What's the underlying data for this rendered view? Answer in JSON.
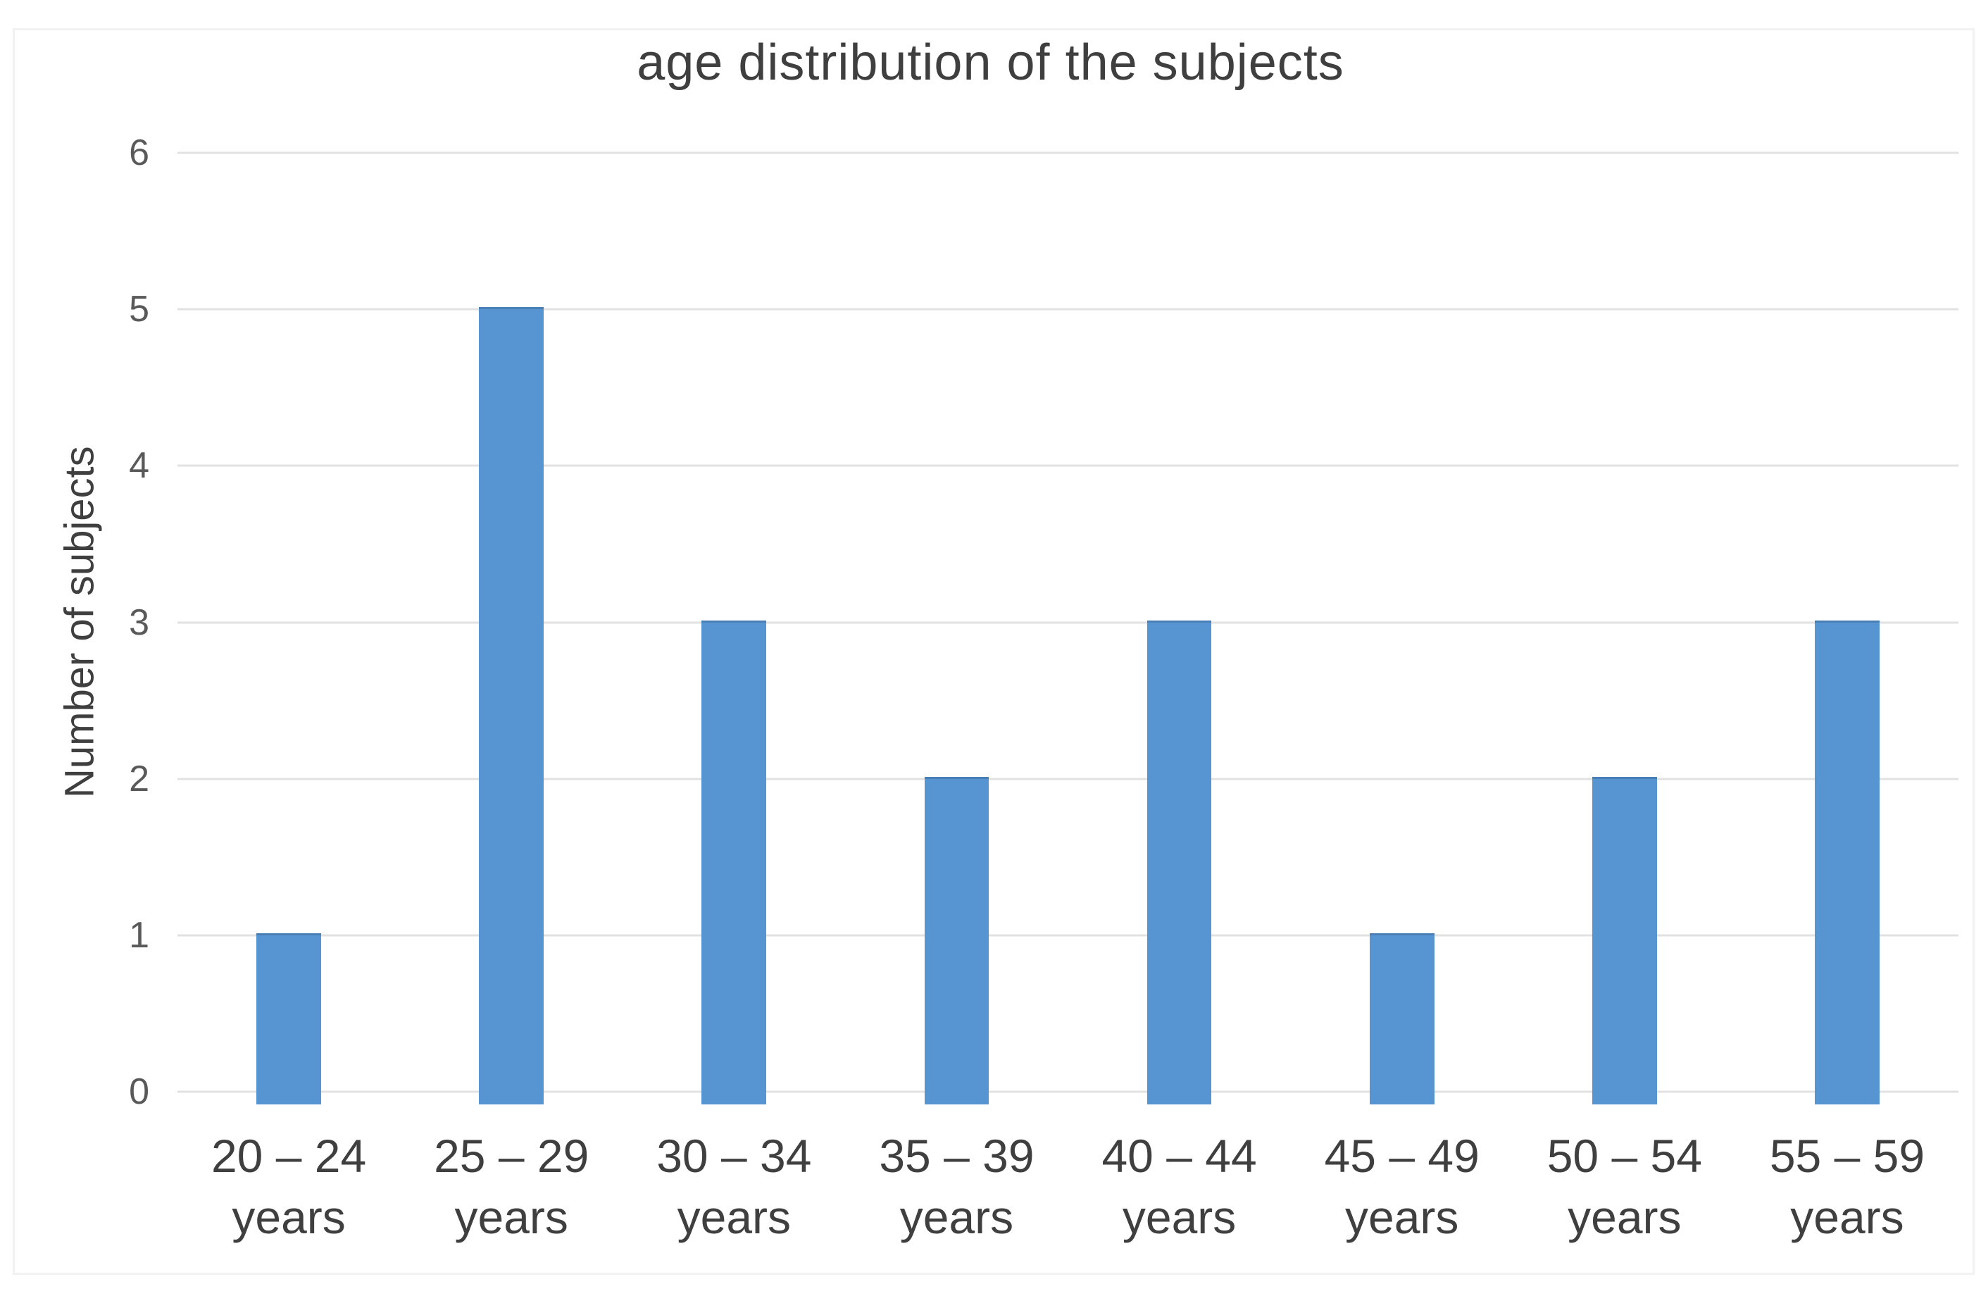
{
  "chart_data": {
    "type": "bar",
    "title": "age distribution of the subjects",
    "xlabel": "",
    "ylabel": "Number of subjects",
    "categories": [
      "20 – 24",
      "25 – 29",
      "30 – 34",
      "35 – 39",
      "40 – 44",
      "45 – 49",
      "50 – 54",
      "55 – 59"
    ],
    "category_unit": "years",
    "values": [
      1,
      5,
      3,
      2,
      3,
      1,
      2,
      3
    ],
    "yticks": [
      0,
      1,
      2,
      3,
      4,
      5,
      6
    ],
    "ylim": [
      0,
      6
    ],
    "grid": "horizontal",
    "legend": null,
    "bar_color": "#5694d2",
    "gridline_color": "#e2e2e2",
    "title_color": "#3f3f3f",
    "tick_color": "#595959",
    "frame_color": "#f2f2f2"
  }
}
